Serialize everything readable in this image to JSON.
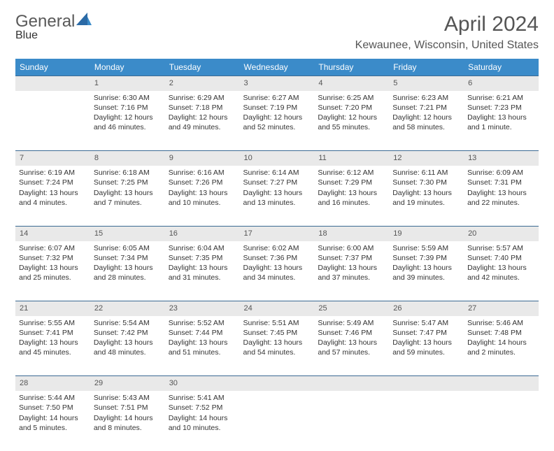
{
  "brand": {
    "word1": "General",
    "word2": "Blue"
  },
  "title": "April 2024",
  "location": "Kewaunee, Wisconsin, United States",
  "colors": {
    "header_bg": "#3b8bc9",
    "daynum_bg": "#e9e9e9",
    "text": "#333333",
    "rule": "#3b6a93"
  },
  "weekdays": [
    "Sunday",
    "Monday",
    "Tuesday",
    "Wednesday",
    "Thursday",
    "Friday",
    "Saturday"
  ],
  "weeks": [
    [
      null,
      {
        "n": "1",
        "sr": "Sunrise: 6:30 AM",
        "ss": "Sunset: 7:16 PM",
        "dl": "Daylight: 12 hours and 46 minutes."
      },
      {
        "n": "2",
        "sr": "Sunrise: 6:29 AM",
        "ss": "Sunset: 7:18 PM",
        "dl": "Daylight: 12 hours and 49 minutes."
      },
      {
        "n": "3",
        "sr": "Sunrise: 6:27 AM",
        "ss": "Sunset: 7:19 PM",
        "dl": "Daylight: 12 hours and 52 minutes."
      },
      {
        "n": "4",
        "sr": "Sunrise: 6:25 AM",
        "ss": "Sunset: 7:20 PM",
        "dl": "Daylight: 12 hours and 55 minutes."
      },
      {
        "n": "5",
        "sr": "Sunrise: 6:23 AM",
        "ss": "Sunset: 7:21 PM",
        "dl": "Daylight: 12 hours and 58 minutes."
      },
      {
        "n": "6",
        "sr": "Sunrise: 6:21 AM",
        "ss": "Sunset: 7:23 PM",
        "dl": "Daylight: 13 hours and 1 minute."
      }
    ],
    [
      {
        "n": "7",
        "sr": "Sunrise: 6:19 AM",
        "ss": "Sunset: 7:24 PM",
        "dl": "Daylight: 13 hours and 4 minutes."
      },
      {
        "n": "8",
        "sr": "Sunrise: 6:18 AM",
        "ss": "Sunset: 7:25 PM",
        "dl": "Daylight: 13 hours and 7 minutes."
      },
      {
        "n": "9",
        "sr": "Sunrise: 6:16 AM",
        "ss": "Sunset: 7:26 PM",
        "dl": "Daylight: 13 hours and 10 minutes."
      },
      {
        "n": "10",
        "sr": "Sunrise: 6:14 AM",
        "ss": "Sunset: 7:27 PM",
        "dl": "Daylight: 13 hours and 13 minutes."
      },
      {
        "n": "11",
        "sr": "Sunrise: 6:12 AM",
        "ss": "Sunset: 7:29 PM",
        "dl": "Daylight: 13 hours and 16 minutes."
      },
      {
        "n": "12",
        "sr": "Sunrise: 6:11 AM",
        "ss": "Sunset: 7:30 PM",
        "dl": "Daylight: 13 hours and 19 minutes."
      },
      {
        "n": "13",
        "sr": "Sunrise: 6:09 AM",
        "ss": "Sunset: 7:31 PM",
        "dl": "Daylight: 13 hours and 22 minutes."
      }
    ],
    [
      {
        "n": "14",
        "sr": "Sunrise: 6:07 AM",
        "ss": "Sunset: 7:32 PM",
        "dl": "Daylight: 13 hours and 25 minutes."
      },
      {
        "n": "15",
        "sr": "Sunrise: 6:05 AM",
        "ss": "Sunset: 7:34 PM",
        "dl": "Daylight: 13 hours and 28 minutes."
      },
      {
        "n": "16",
        "sr": "Sunrise: 6:04 AM",
        "ss": "Sunset: 7:35 PM",
        "dl": "Daylight: 13 hours and 31 minutes."
      },
      {
        "n": "17",
        "sr": "Sunrise: 6:02 AM",
        "ss": "Sunset: 7:36 PM",
        "dl": "Daylight: 13 hours and 34 minutes."
      },
      {
        "n": "18",
        "sr": "Sunrise: 6:00 AM",
        "ss": "Sunset: 7:37 PM",
        "dl": "Daylight: 13 hours and 37 minutes."
      },
      {
        "n": "19",
        "sr": "Sunrise: 5:59 AM",
        "ss": "Sunset: 7:39 PM",
        "dl": "Daylight: 13 hours and 39 minutes."
      },
      {
        "n": "20",
        "sr": "Sunrise: 5:57 AM",
        "ss": "Sunset: 7:40 PM",
        "dl": "Daylight: 13 hours and 42 minutes."
      }
    ],
    [
      {
        "n": "21",
        "sr": "Sunrise: 5:55 AM",
        "ss": "Sunset: 7:41 PM",
        "dl": "Daylight: 13 hours and 45 minutes."
      },
      {
        "n": "22",
        "sr": "Sunrise: 5:54 AM",
        "ss": "Sunset: 7:42 PM",
        "dl": "Daylight: 13 hours and 48 minutes."
      },
      {
        "n": "23",
        "sr": "Sunrise: 5:52 AM",
        "ss": "Sunset: 7:44 PM",
        "dl": "Daylight: 13 hours and 51 minutes."
      },
      {
        "n": "24",
        "sr": "Sunrise: 5:51 AM",
        "ss": "Sunset: 7:45 PM",
        "dl": "Daylight: 13 hours and 54 minutes."
      },
      {
        "n": "25",
        "sr": "Sunrise: 5:49 AM",
        "ss": "Sunset: 7:46 PM",
        "dl": "Daylight: 13 hours and 57 minutes."
      },
      {
        "n": "26",
        "sr": "Sunrise: 5:47 AM",
        "ss": "Sunset: 7:47 PM",
        "dl": "Daylight: 13 hours and 59 minutes."
      },
      {
        "n": "27",
        "sr": "Sunrise: 5:46 AM",
        "ss": "Sunset: 7:48 PM",
        "dl": "Daylight: 14 hours and 2 minutes."
      }
    ],
    [
      {
        "n": "28",
        "sr": "Sunrise: 5:44 AM",
        "ss": "Sunset: 7:50 PM",
        "dl": "Daylight: 14 hours and 5 minutes."
      },
      {
        "n": "29",
        "sr": "Sunrise: 5:43 AM",
        "ss": "Sunset: 7:51 PM",
        "dl": "Daylight: 14 hours and 8 minutes."
      },
      {
        "n": "30",
        "sr": "Sunrise: 5:41 AM",
        "ss": "Sunset: 7:52 PM",
        "dl": "Daylight: 14 hours and 10 minutes."
      },
      null,
      null,
      null,
      null
    ]
  ]
}
